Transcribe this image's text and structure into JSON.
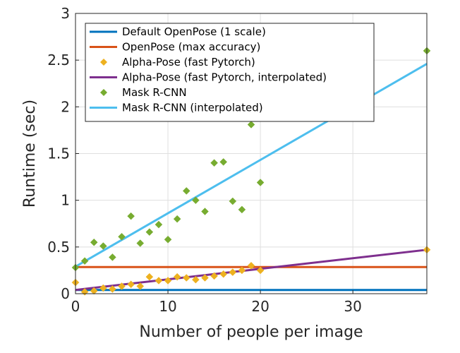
{
  "chart_data": {
    "type": "scatter",
    "xlabel": "Number of people per image",
    "ylabel": "Runtime (sec)",
    "xlim": [
      0,
      38
    ],
    "ylim": [
      0,
      3
    ],
    "xticks": [
      0,
      10,
      20,
      30
    ],
    "yticks": [
      0,
      0.5,
      1,
      1.5,
      2,
      2.5,
      3
    ],
    "ytick_labels": [
      "0",
      "0.5",
      "1",
      "1.5",
      "2",
      "2.5",
      "3"
    ],
    "xtick_labels": [
      "0",
      "10",
      "20",
      "30"
    ],
    "grid": true,
    "legend_position": "top-left",
    "series": [
      {
        "name": "Default OpenPose (1 scale)",
        "kind": "line",
        "color": "#0072BD",
        "x": [
          0,
          38
        ],
        "y": [
          0.04,
          0.04
        ]
      },
      {
        "name": "OpenPose (max accuracy)",
        "kind": "line",
        "color": "#D95319",
        "x": [
          0,
          38
        ],
        "y": [
          0.285,
          0.285
        ]
      },
      {
        "name": "Alpha-Pose (fast Pytorch)",
        "kind": "scatter",
        "color": "#EDB120",
        "x": [
          0,
          1,
          2,
          3,
          4,
          5,
          6,
          7,
          8,
          9,
          10,
          11,
          12,
          13,
          14,
          15,
          16,
          17,
          18,
          19,
          20,
          38
        ],
        "y": [
          0.12,
          0.02,
          0.03,
          0.06,
          0.05,
          0.08,
          0.1,
          0.08,
          0.18,
          0.14,
          0.14,
          0.18,
          0.17,
          0.15,
          0.17,
          0.19,
          0.21,
          0.23,
          0.25,
          0.3,
          0.25,
          0.47
        ]
      },
      {
        "name": "Alpha-Pose (fast Pytorch, interpolated)",
        "kind": "line",
        "color": "#7E2F8E",
        "x": [
          0,
          38
        ],
        "y": [
          0.04,
          0.47
        ]
      },
      {
        "name": "Mask R-CNN",
        "kind": "scatter",
        "color": "#77AC30",
        "x": [
          0,
          1,
          2,
          3,
          4,
          5,
          6,
          7,
          8,
          9,
          10,
          11,
          12,
          13,
          14,
          15,
          16,
          17,
          18,
          19,
          20,
          38
        ],
        "y": [
          0.28,
          0.35,
          0.55,
          0.51,
          0.39,
          0.61,
          0.83,
          0.54,
          0.66,
          0.74,
          0.58,
          0.8,
          1.1,
          1.0,
          0.88,
          1.4,
          1.41,
          0.99,
          0.9,
          1.81,
          1.19,
          2.6
        ]
      },
      {
        "name": "Mask R-CNN (interpolated)",
        "kind": "line",
        "color": "#4DBEEE",
        "x": [
          0,
          38
        ],
        "y": [
          0.29,
          2.46
        ]
      }
    ]
  }
}
